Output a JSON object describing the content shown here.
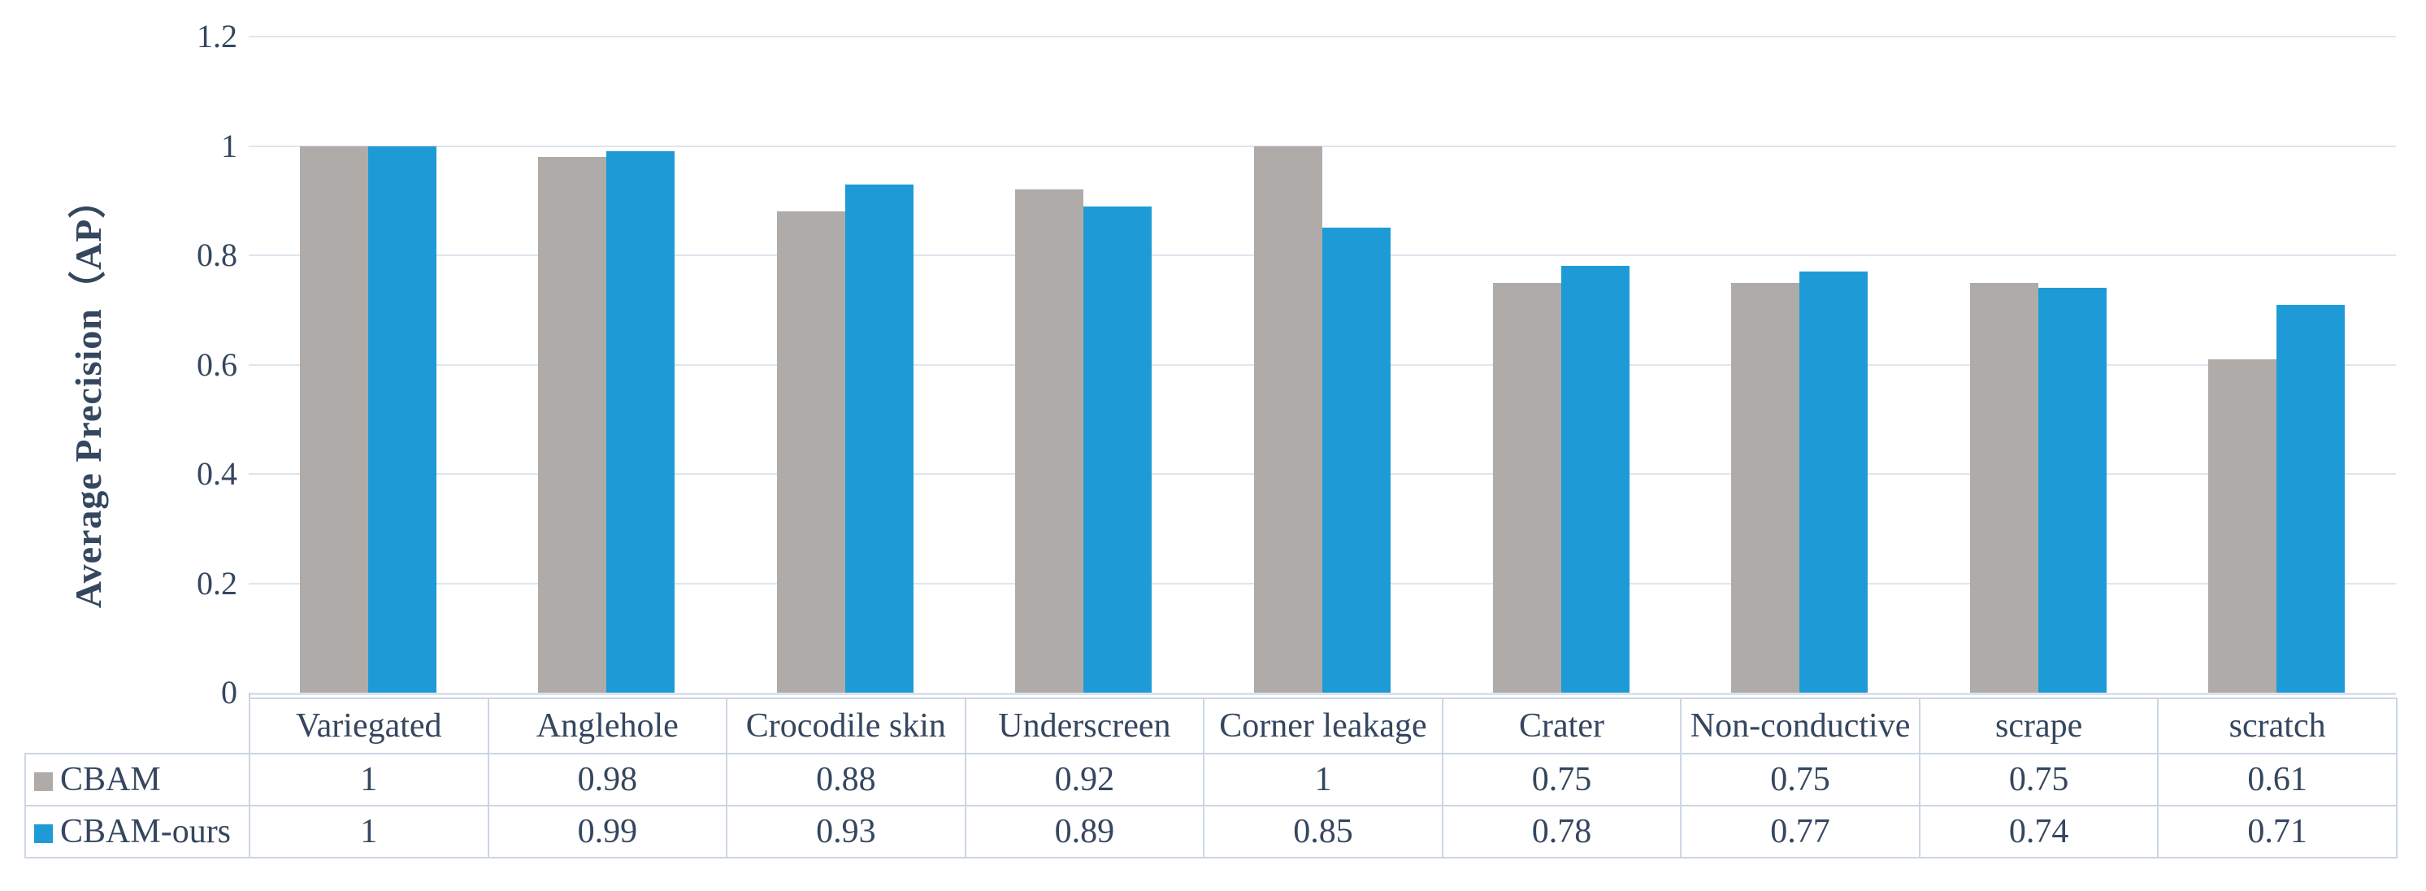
{
  "figure": {
    "background": "#ffffff",
    "text_color": "#35465f",
    "gridline_color": "#dfe5ee",
    "axis_line_color": "#dde3ec",
    "table_border_color": "#ccd6e3"
  },
  "chart_data": {
    "type": "bar",
    "title": "",
    "xlabel": "",
    "ylabel": "Average Precision（AP）",
    "categories": [
      "Variegated",
      "Anglehole",
      "Crocodile skin",
      "Underscreen",
      "Corner leakage",
      "Crater",
      "Non-conductive",
      "scrape",
      "scratch"
    ],
    "series": [
      {
        "name": "CBAM",
        "color": "#AFABA8",
        "values": [
          1,
          0.98,
          0.88,
          0.92,
          1,
          0.75,
          0.75,
          0.75,
          0.61
        ]
      },
      {
        "name": "CBAM-ours",
        "color": "#1E9BD7",
        "values": [
          1,
          0.99,
          0.93,
          0.89,
          0.85,
          0.78,
          0.77,
          0.74,
          0.71
        ]
      }
    ],
    "ylim": [
      0,
      1.2
    ],
    "yticks": [
      0,
      0.2,
      0.4,
      0.6,
      0.8,
      1,
      1.2
    ],
    "ytick_labels": [
      "0",
      "0.2",
      "0.4",
      "0.6",
      "0.8",
      "1",
      "1.2"
    ],
    "grid": true,
    "legend_position": "table-rows-left"
  }
}
